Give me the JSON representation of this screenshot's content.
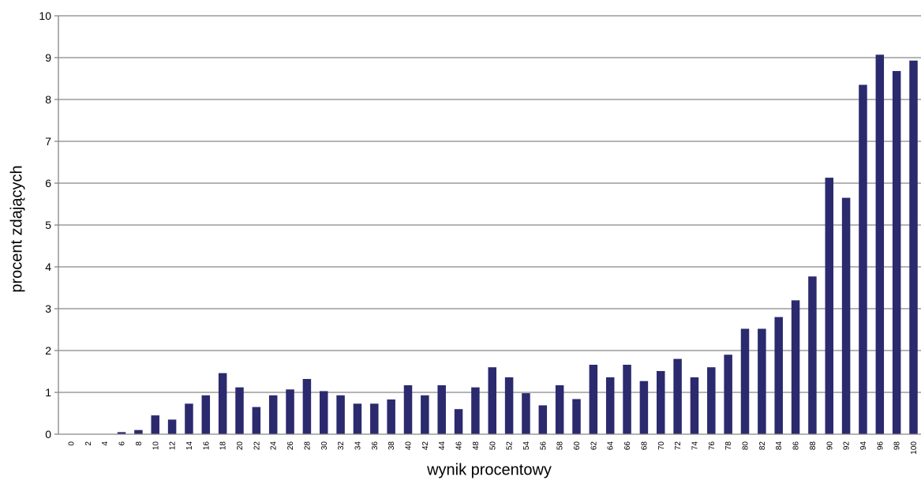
{
  "chart_data": {
    "type": "bar",
    "title": "",
    "xlabel": "wynik procentowy",
    "ylabel": "procent zdających",
    "ylim": [
      0,
      10
    ],
    "yticks": [
      0,
      1,
      2,
      3,
      4,
      5,
      6,
      7,
      8,
      9,
      10
    ],
    "grid": true,
    "legend": "none",
    "bar_color": "#2b2a6e",
    "categories": [
      "0",
      "2",
      "4",
      "6",
      "8",
      "10",
      "12",
      "14",
      "16",
      "18",
      "20",
      "22",
      "24",
      "26",
      "28",
      "30",
      "32",
      "34",
      "36",
      "38",
      "40",
      "42",
      "44",
      "46",
      "48",
      "50",
      "52",
      "54",
      "56",
      "58",
      "60",
      "62",
      "64",
      "66",
      "68",
      "70",
      "72",
      "74",
      "76",
      "78",
      "80",
      "82",
      "84",
      "86",
      "88",
      "90",
      "92",
      "94",
      "96",
      "98",
      "100"
    ],
    "values": [
      0,
      0,
      0,
      0.05,
      0.1,
      0.45,
      0.35,
      0.73,
      0.93,
      1.46,
      1.12,
      0.65,
      0.93,
      1.07,
      1.32,
      1.03,
      0.93,
      0.73,
      0.73,
      0.83,
      1.17,
      0.93,
      1.17,
      0.6,
      1.12,
      1.6,
      1.36,
      0.98,
      0.69,
      1.17,
      0.84,
      1.66,
      1.36,
      1.66,
      1.27,
      1.51,
      1.8,
      1.36,
      1.6,
      1.9,
      2.52,
      2.52,
      2.8,
      3.2,
      3.77,
      6.13,
      5.65,
      8.35,
      9.07,
      8.68,
      8.93
    ]
  }
}
